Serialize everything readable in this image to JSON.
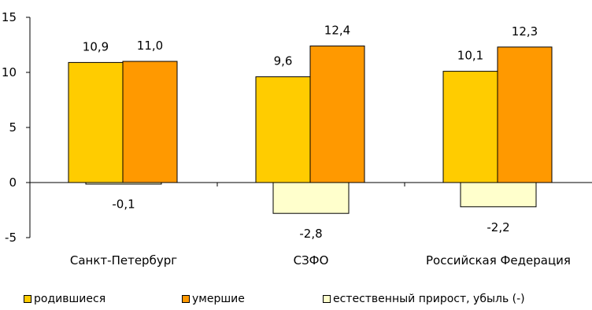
{
  "chart_data": {
    "type": "bar",
    "categories": [
      "Санкт-Петербург",
      "СЗФО",
      "Российская Федерация"
    ],
    "series": [
      {
        "name": "родившиеся",
        "values": [
          10.9,
          9.6,
          10.1
        ],
        "labels": [
          "10,9",
          "9,6",
          "10,1"
        ],
        "color": "#FFCC00"
      },
      {
        "name": "умершие",
        "values": [
          11.0,
          12.4,
          12.3
        ],
        "labels": [
          "11,0",
          "12,4",
          "12,3"
        ],
        "color": "#FF9900"
      },
      {
        "name": "естественный прирост, убыль (-)",
        "values": [
          -0.1,
          -2.8,
          -2.2
        ],
        "labels": [
          "-0,1",
          "-2,8",
          "-2,2"
        ],
        "color": "#FFFFCC"
      }
    ],
    "y_ticks": [
      15,
      10,
      5,
      0,
      -5
    ],
    "y_tick_labels": [
      "15",
      "10",
      "5",
      "0",
      "-5"
    ],
    "ylim": [
      -5,
      15
    ],
    "grid": false,
    "legend_position": "bottom"
  }
}
